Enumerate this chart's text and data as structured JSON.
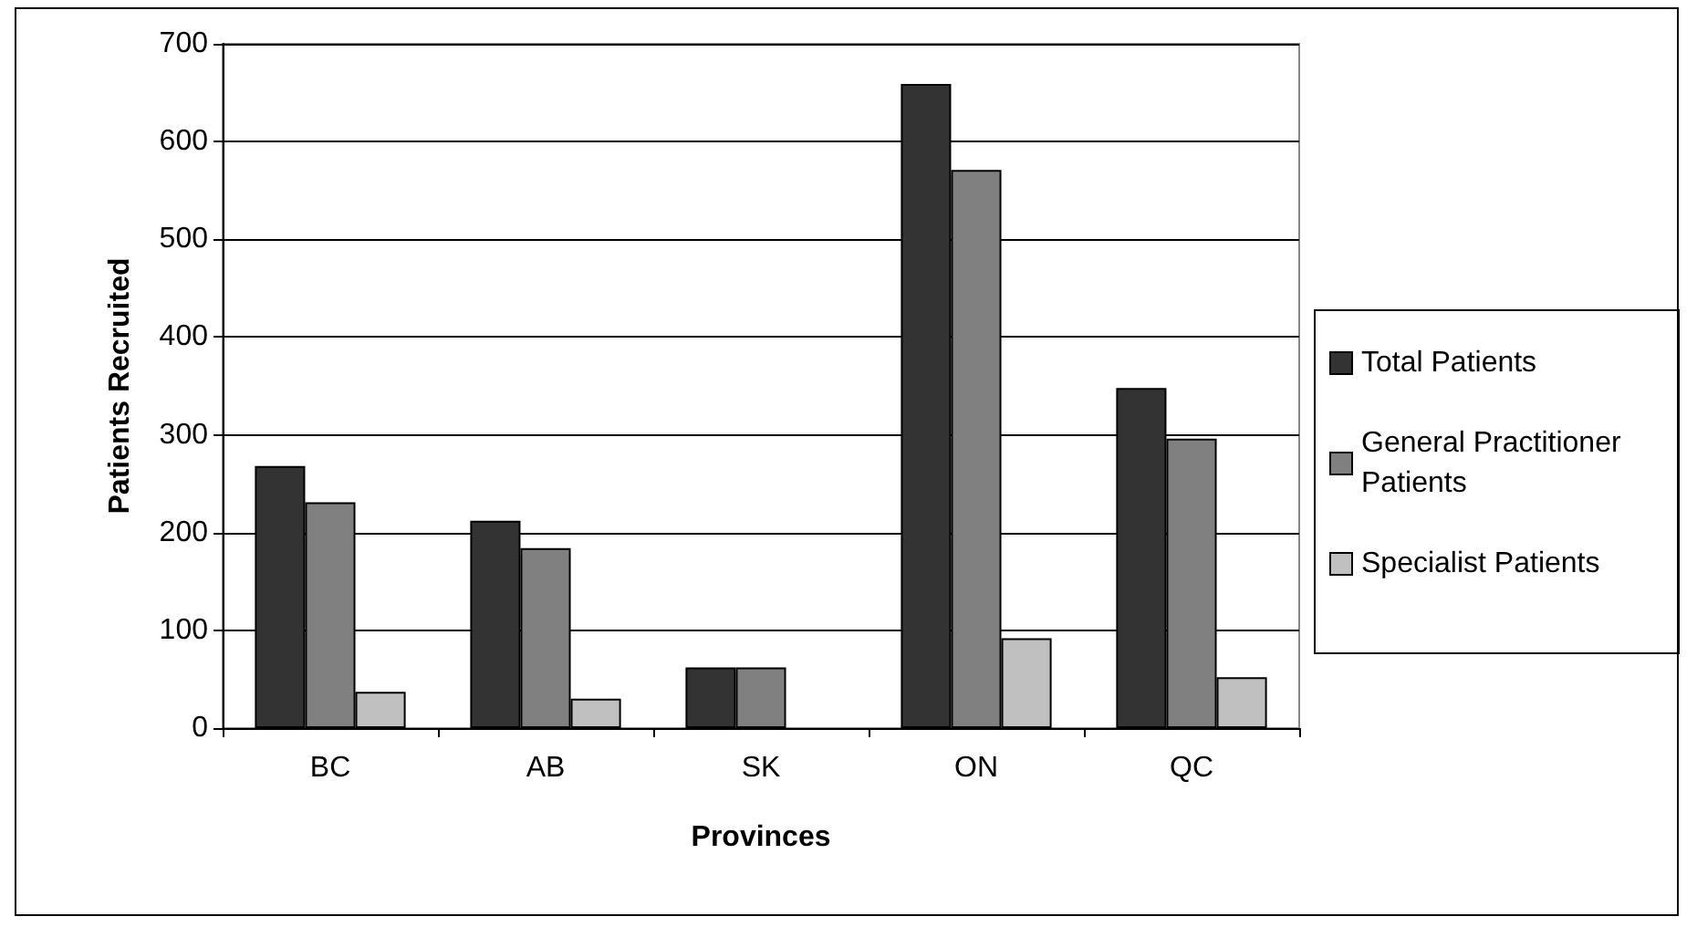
{
  "chart_data": {
    "type": "bar",
    "xlabel": "Provinces",
    "ylabel": "Patients Recruited",
    "categories": [
      "BC",
      "AB",
      "SK",
      "ON",
      "QC"
    ],
    "series": [
      {
        "name": "Total Patients",
        "color": "#333333",
        "values": [
          268,
          212,
          62,
          659,
          348
        ]
      },
      {
        "name": "General Practitioner Patients",
        "color": "#808080",
        "values": [
          231,
          184,
          62,
          571,
          296
        ]
      },
      {
        "name": "Specialist Patients",
        "color": "#c0c0c0",
        "values": [
          37,
          30,
          null,
          92,
          52
        ]
      }
    ],
    "ylim": [
      0,
      700
    ],
    "yticks": [
      0,
      100,
      200,
      300,
      400,
      500,
      600,
      700
    ],
    "grid": "y",
    "legend": "right"
  }
}
